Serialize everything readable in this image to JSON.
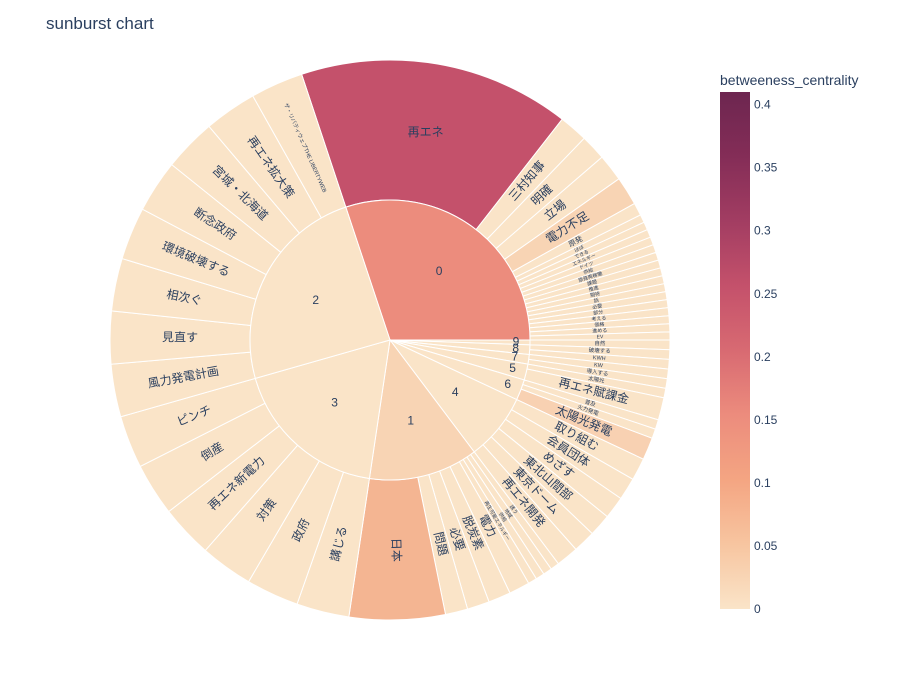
{
  "chart_data": {
    "type": "sunburst",
    "title": "sunburst chart",
    "colorbar": {
      "title": "betweeness_centrality",
      "range": [
        0,
        0.41
      ],
      "ticks": [
        "0",
        "0.05",
        "0.1",
        "0.15",
        "0.2",
        "0.25",
        "0.3",
        "0.35",
        "0.4"
      ],
      "colorscale": [
        "#fae4c8",
        "#f7c5a0",
        "#f4a582",
        "#ec8c7d",
        "#d86a72",
        "#c4516b",
        "#a23d62",
        "#842d57",
        "#6d2650"
      ]
    },
    "groups": [
      {
        "label": "0",
        "color": "#ec8c7d",
        "children": [
          {
            "label": "再エネ",
            "weight": 17,
            "value": 0.26,
            "color": "#c4516b"
          },
          {
            "label": "三村知事",
            "weight": 1.8,
            "value": 0
          },
          {
            "label": "明確",
            "weight": 1.6,
            "value": 0
          },
          {
            "label": "立場",
            "weight": 1.7,
            "value": 0
          },
          {
            "label": "電力不足",
            "weight": 1.8,
            "value": 0.02,
            "color": "#f8d4b4"
          },
          {
            "label": "原発",
            "weight": 0.8,
            "value": 0
          },
          {
            "label": "ほぼ",
            "weight": 0.5,
            "value": 0
          },
          {
            "label": "できる",
            "weight": 0.5,
            "value": 0
          },
          {
            "label": "エネルギー",
            "weight": 0.5,
            "value": 0
          },
          {
            "label": "ドイツ",
            "weight": 0.5,
            "value": 0
          },
          {
            "label": "供給",
            "weight": 0.5,
            "value": 0
          },
          {
            "label": "原発再稼働",
            "weight": 0.5,
            "value": 0
          },
          {
            "label": "課題",
            "weight": 0.5,
            "value": 0
          },
          {
            "label": "推進",
            "weight": 0.5,
            "value": 0
          },
          {
            "label": "期待",
            "weight": 0.5,
            "value": 0
          },
          {
            "label": "話",
            "weight": 0.5,
            "value": 0
          },
          {
            "label": "必要",
            "weight": 0.5,
            "value": 0
          },
          {
            "label": "部分",
            "weight": 0.5,
            "value": 0
          },
          {
            "label": "考える",
            "weight": 0.5,
            "value": 0
          },
          {
            "label": "価格",
            "weight": 0.5,
            "value": 0
          },
          {
            "label": "進める",
            "weight": 0.5,
            "value": 0
          },
          {
            "label": "EV",
            "weight": 0.5,
            "value": 0
          }
        ]
      },
      {
        "label": "9",
        "color": "#fae4c8",
        "children": [
          {
            "label": "自然",
            "weight": 0.6,
            "value": 0
          }
        ]
      },
      {
        "label": "8",
        "color": "#fae4c8",
        "children": [
          {
            "label": "破壊する",
            "weight": 0.6,
            "value": 0
          },
          {
            "label": "KWH",
            "weight": 0.6,
            "value": 0
          }
        ]
      },
      {
        "label": "7",
        "color": "#fae4c8",
        "children": [
          {
            "label": "KW",
            "weight": 0.6,
            "value": 0
          },
          {
            "label": "導入する",
            "weight": 0.6,
            "value": 0
          }
        ]
      },
      {
        "label": "5",
        "color": "#fae4c8",
        "children": [
          {
            "label": "太陽光",
            "weight": 0.6,
            "value": 0
          },
          {
            "label": "再エネ賦課金",
            "weight": 1.4,
            "value": 0
          }
        ]
      },
      {
        "label": "6",
        "color": "#fae4c8",
        "children": [
          {
            "label": "普及",
            "weight": 0.6,
            "value": 0
          },
          {
            "label": "火力発電",
            "weight": 0.6,
            "value": 0
          },
          {
            "label": "太陽光発電",
            "weight": 1.4,
            "value": 0.03,
            "color": "#f8d1b2"
          }
        ]
      },
      {
        "label": "4",
        "color": "#fae4c8",
        "children": [
          {
            "label": "取り組む",
            "weight": 1.4,
            "value": 0
          },
          {
            "label": "会員団体",
            "weight": 1.4,
            "value": 0
          },
          {
            "label": "めざす",
            "weight": 1.4,
            "value": 0
          },
          {
            "label": "東北山間部",
            "weight": 1.4,
            "value": 0
          },
          {
            "label": "東京ドーム",
            "weight": 1.4,
            "value": 0
          },
          {
            "label": "再エネ開発",
            "weight": 1.4,
            "value": 0
          }
        ]
      },
      {
        "label": "1",
        "color": "#f8d4b4",
        "children": [
          {
            "label": "誘う",
            "weight": 0.55,
            "value": 0
          },
          {
            "label": "地域",
            "weight": 0.55,
            "value": 0
          },
          {
            "label": "供給",
            "weight": 0.55,
            "value": 0
          },
          {
            "label": "再生可能エネルギー",
            "weight": 0.55,
            "value": 0
          },
          {
            "label": "電力",
            "weight": 1.3,
            "value": 0
          },
          {
            "label": "脱炭素",
            "weight": 1.4,
            "value": 0
          },
          {
            "label": "必要",
            "weight": 1.4,
            "value": 0
          },
          {
            "label": "問題",
            "weight": 1.4,
            "value": 0
          },
          {
            "label": "日本",
            "weight": 6,
            "value": 0.06,
            "color": "#f4b592"
          }
        ]
      },
      {
        "label": "3",
        "color": "#fae4c8",
        "children": [
          {
            "label": "講じる",
            "weight": 3.3,
            "value": 0
          },
          {
            "label": "政府",
            "weight": 3.3,
            "value": 0
          },
          {
            "label": "対策",
            "weight": 3.3,
            "value": 0
          },
          {
            "label": "再エネ新電力",
            "weight": 3.3,
            "value": 0
          },
          {
            "label": "倒産",
            "weight": 3.3,
            "value": 0
          },
          {
            "label": "ピンチ",
            "weight": 3.3,
            "value": 0
          }
        ]
      },
      {
        "label": "2",
        "color": "#fae4c8",
        "children": [
          {
            "label": "風力発電計画",
            "weight": 3.3,
            "value": 0
          },
          {
            "label": "見直す",
            "weight": 3.3,
            "value": 0
          },
          {
            "label": "相次ぐ",
            "weight": 3.3,
            "value": 0
          },
          {
            "label": "環境破壊する",
            "weight": 3.3,
            "value": 0
          },
          {
            "label": "断念政府",
            "weight": 3.3,
            "value": 0
          },
          {
            "label": "宮城・北海道",
            "weight": 3.3,
            "value": 0
          },
          {
            "label": "再エネ拡大策",
            "weight": 3.3,
            "value": 0
          },
          {
            "label": "ザ・リバティウェブTHE LIBERTYWEB",
            "weight": 3.3,
            "value": 0
          }
        ]
      }
    ]
  }
}
